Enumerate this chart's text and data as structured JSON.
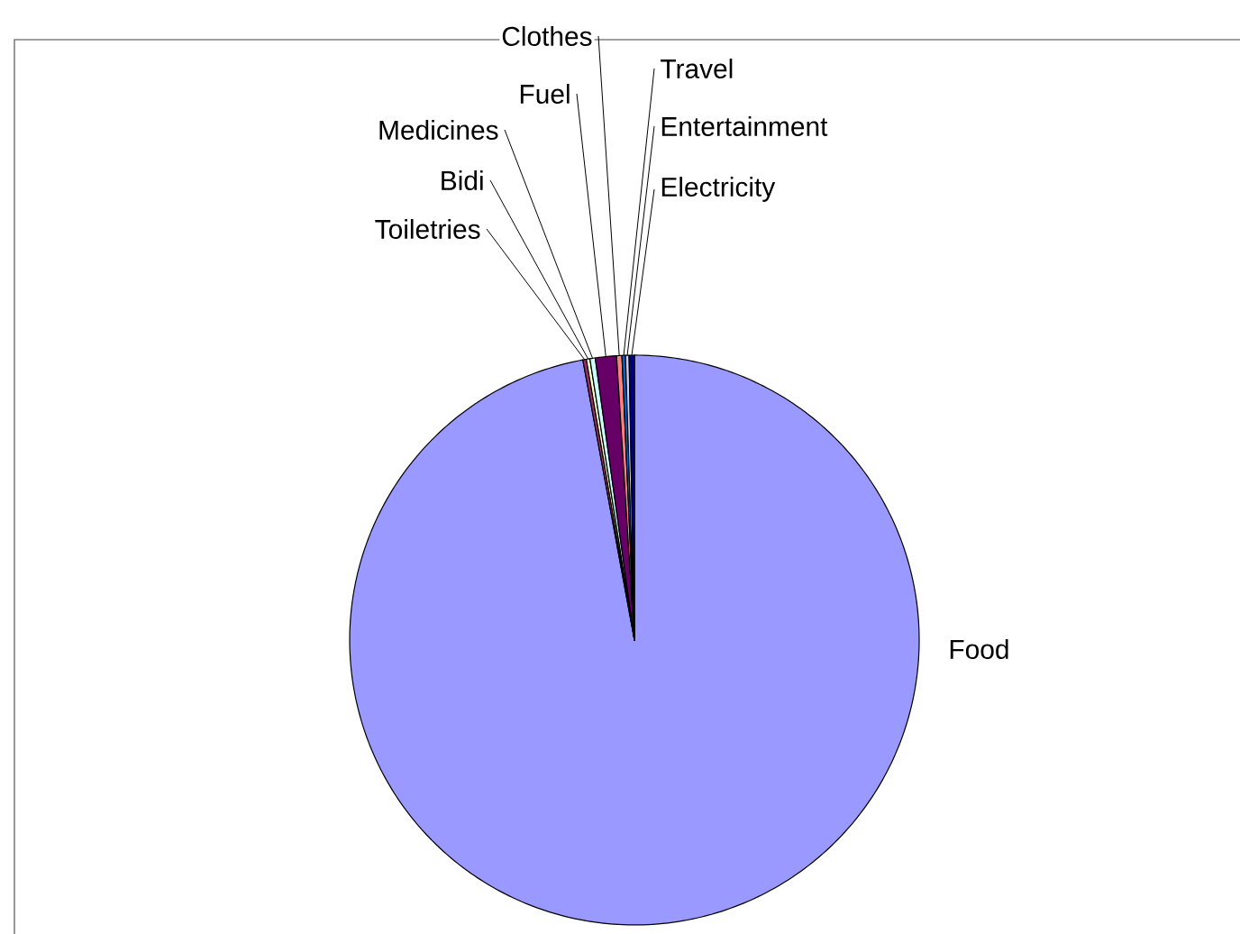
{
  "chart_data": {
    "type": "pie",
    "categories": [
      "Food",
      "Toiletries",
      "Bidi",
      "Medicines",
      "Fuel",
      "Clothes",
      "Travel",
      "Entertainment",
      "Electricity"
    ],
    "values": [
      97.1,
      0.2,
      0.2,
      0.3,
      1.2,
      0.3,
      0.2,
      0.2,
      0.3
    ],
    "colors": [
      "#9999ff",
      "#993366",
      "#ffffcc",
      "#ccffff",
      "#660066",
      "#ff8080",
      "#0066cc",
      "#ccccff",
      "#000080"
    ]
  }
}
